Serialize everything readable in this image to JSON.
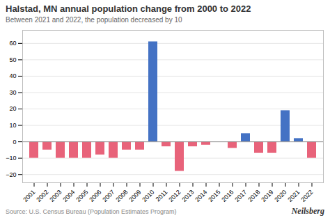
{
  "chart_data": {
    "type": "bar",
    "title": "Halstad, MN annual population change from 2000 to 2022",
    "subtitle": "Between 2021 and 2022, the population decreased by 10",
    "annotations": [
      "Source: U.S. Census Bureau (Population Estimates Program)",
      "Neilsberg"
    ],
    "categories": [
      "2001",
      "2002",
      "2003",
      "2004",
      "2005",
      "2006",
      "2007",
      "2008",
      "2009",
      "2010",
      "2011",
      "2012",
      "2013",
      "2014",
      "2015",
      "2016",
      "2017",
      "2018",
      "2019",
      "2020",
      "2021",
      "2022"
    ],
    "values": [
      -10,
      -5,
      -10,
      -10,
      -10,
      -8,
      -10,
      -5,
      -5,
      61,
      -3,
      -18,
      -3,
      -2,
      0,
      -4,
      5,
      -7,
      -7,
      19,
      2,
      -10
    ],
    "colors": [
      "#E8637A",
      "#E8637A",
      "#E8637A",
      "#E8637A",
      "#E8637A",
      "#E8637A",
      "#E8637A",
      "#E8637A",
      "#E8637A",
      "#4472C4",
      "#E8637A",
      "#E8637A",
      "#E8637A",
      "#E8637A",
      "#4472C4",
      "#E8637A",
      "#4472C4",
      "#E8637A",
      "#E8637A",
      "#4472C4",
      "#4472C4",
      "#E8637A"
    ],
    "ylim": [
      -25,
      68
    ],
    "yticks": [
      -20,
      -10,
      0,
      10,
      20,
      30,
      40,
      50,
      60
    ],
    "grid": true
  }
}
